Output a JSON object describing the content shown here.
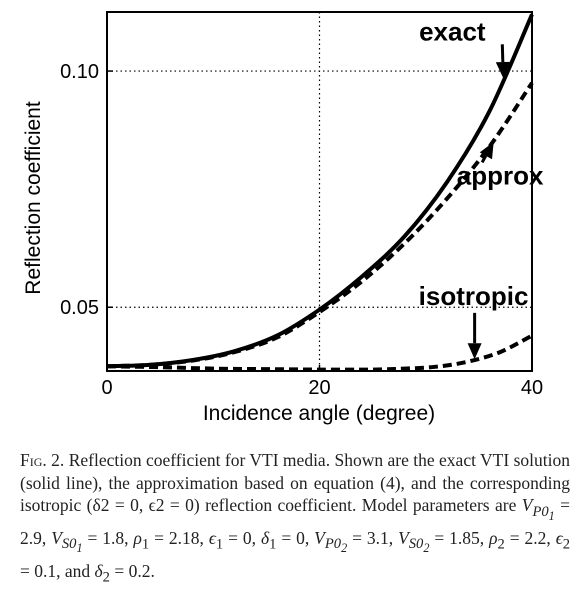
{
  "chart_data": {
    "type": "line",
    "xlabel": "Incidence angle (degree)",
    "ylabel": "Reflection coefficient",
    "xlim": [
      0,
      40
    ],
    "ylim": [
      0.0365,
      0.1125
    ],
    "xticks": [
      0,
      20,
      40
    ],
    "yticks": [
      0.05,
      0.1
    ],
    "ytick_labels": [
      "0.05",
      "0.10"
    ],
    "grid": "dotted lines at x=20, y=0.05 and y=0.10",
    "series": [
      {
        "name": "exact",
        "style": "solid",
        "x": [
          0,
          4,
          8,
          12,
          16,
          20,
          24,
          28,
          32,
          36,
          40
        ],
        "y": [
          0.0375,
          0.0378,
          0.0388,
          0.0407,
          0.044,
          0.0495,
          0.0565,
          0.065,
          0.0765,
          0.0915,
          0.112
        ]
      },
      {
        "name": "approx",
        "style": "dashed",
        "x": [
          0,
          4,
          8,
          12,
          16,
          20,
          24,
          28,
          32,
          36,
          40
        ],
        "y": [
          0.0375,
          0.0378,
          0.0387,
          0.0405,
          0.0436,
          0.049,
          0.0555,
          0.0635,
          0.073,
          0.084,
          0.0975
        ]
      },
      {
        "name": "isotropic",
        "style": "dashed",
        "x": [
          0,
          5,
          10,
          15,
          20,
          25,
          28,
          31,
          34,
          37,
          40
        ],
        "y": [
          0.0375,
          0.0373,
          0.037,
          0.0369,
          0.0368,
          0.0368,
          0.037,
          0.0374,
          0.0385,
          0.0405,
          0.044
        ]
      }
    ],
    "annotations": [
      {
        "text": "exact",
        "x": 32.5,
        "y": 0.1065,
        "arrow_to": [
          37.3,
          0.0985
        ]
      },
      {
        "text": "approx",
        "x": 37.0,
        "y": 0.076,
        "arrow_to": [
          36.4,
          0.085
        ]
      },
      {
        "text": "isotropic",
        "x": 34.5,
        "y": 0.0505,
        "arrow_to": [
          34.6,
          0.039
        ]
      }
    ]
  },
  "caption": {
    "label": "Fig. 2.",
    "text_before_params": "Reflection coefficient for VTI media. Shown are the exact VTI solution (solid line), the approximation based on equation (4), and the corresponding isotropic (δ2 = 0, ϵ2 = 0) reflection coefficient. Model parameters are",
    "params": [
      "VP01 = 2.9,",
      "VS01 = 1.8,",
      "ρ1 = 2.18,",
      "ϵ1 = 0,",
      "δ1 = 0,",
      "VP02 = 3.1,",
      "VS02 = 1.85,",
      "ρ2 = 2.2,",
      "ϵ2 = 0.1,",
      "and δ2 = 0.2."
    ]
  }
}
